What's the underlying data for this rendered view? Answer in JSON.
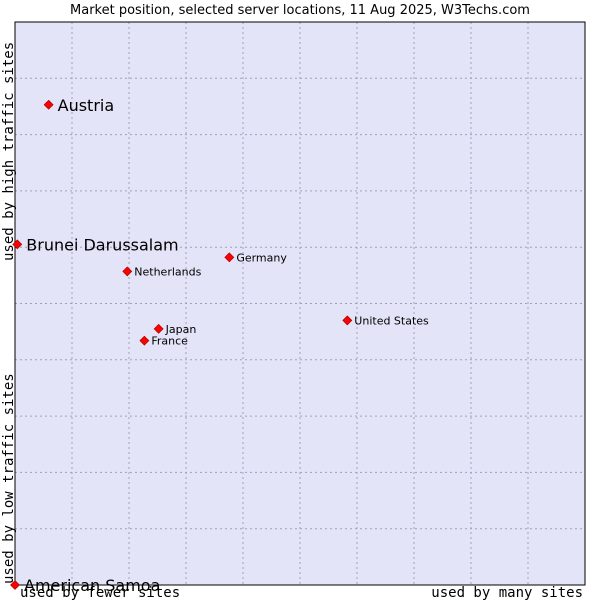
{
  "chart_data": {
    "type": "scatter",
    "title": "Market position, selected server locations, 11 Aug 2025, W3Techs.com",
    "x_axis": {
      "low_label": "used by fewer sites",
      "high_label": "used by many sites",
      "range": [
        0,
        100
      ]
    },
    "y_axis": {
      "low_label": "used by low traffic sites",
      "high_label": "used by high traffic sites",
      "range": [
        0,
        100
      ]
    },
    "grid": true,
    "marker_color": "#ff0000",
    "plot_background": "#e4e4f8",
    "points": [
      {
        "name": "Austria",
        "x": 5.9,
        "y": 85.3,
        "emphasis": true
      },
      {
        "name": "Brunei Darussalam",
        "x": 0.4,
        "y": 60.5,
        "emphasis": true
      },
      {
        "name": "American Samoa",
        "x": 0.0,
        "y": 0.0,
        "emphasis": true
      },
      {
        "name": "Germany",
        "x": 37.6,
        "y": 58.2,
        "emphasis": false
      },
      {
        "name": "Netherlands",
        "x": 19.7,
        "y": 55.7,
        "emphasis": false
      },
      {
        "name": "United States",
        "x": 58.3,
        "y": 47.0,
        "emphasis": false
      },
      {
        "name": "Japan",
        "x": 25.2,
        "y": 45.5,
        "emphasis": false
      },
      {
        "name": "France",
        "x": 22.7,
        "y": 43.4,
        "emphasis": false
      }
    ]
  }
}
